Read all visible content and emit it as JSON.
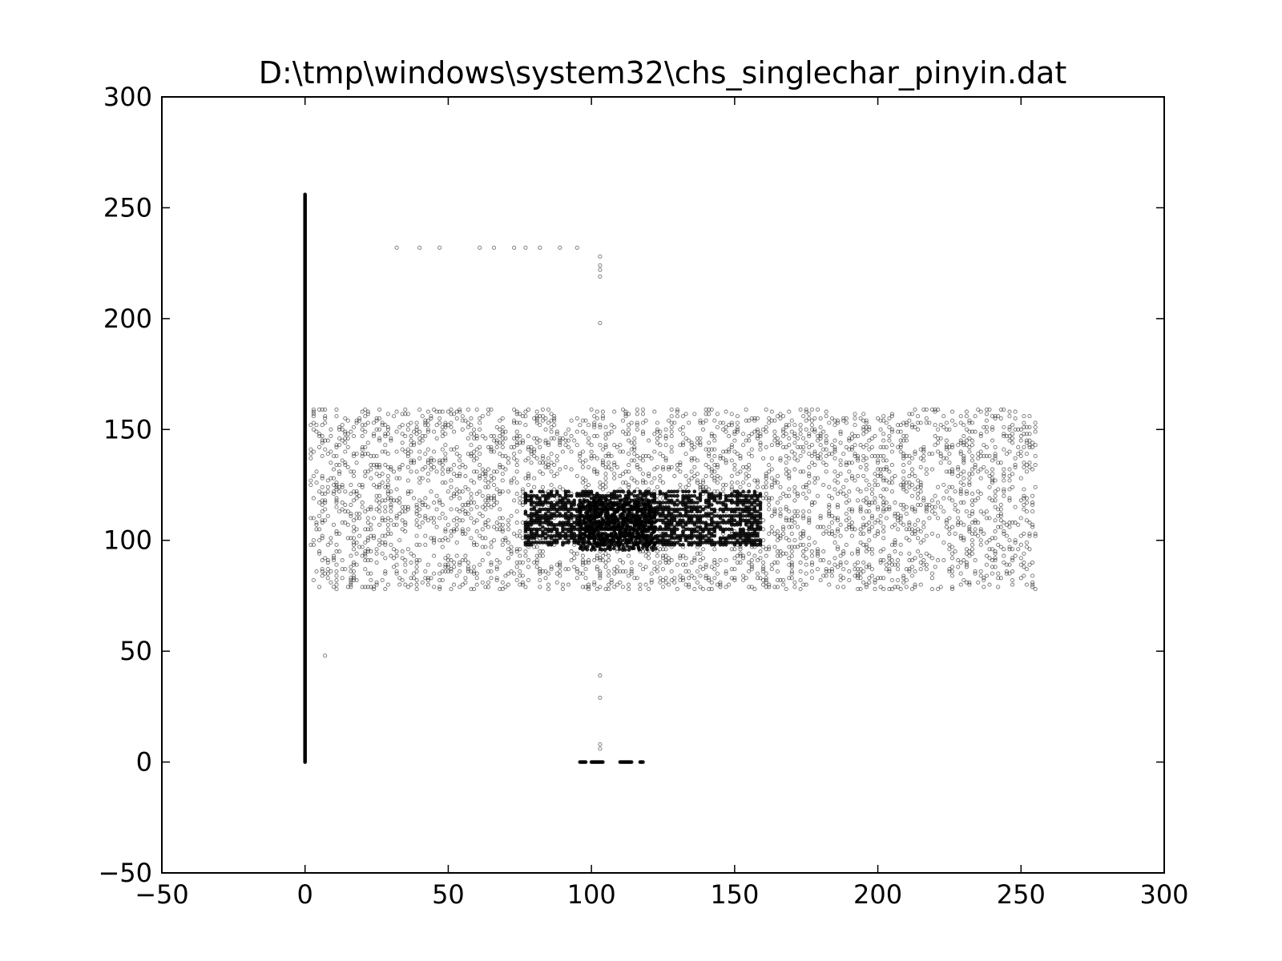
{
  "chart_data": {
    "type": "scatter",
    "title": "D:\\tmp\\windows\\system32\\chs_singlechar_pinyin.dat",
    "xlabel": "",
    "ylabel": "",
    "xlim": [
      -50,
      300
    ],
    "ylim": [
      -50,
      300
    ],
    "x_ticks": [
      -50,
      0,
      50,
      100,
      150,
      200,
      250,
      300
    ],
    "y_ticks": [
      -50,
      0,
      50,
      100,
      150,
      200,
      250,
      300
    ],
    "x_tick_labels": [
      "−50",
      "0",
      "50",
      "100",
      "150",
      "200",
      "250",
      "300"
    ],
    "y_tick_labels": [
      "−50",
      "0",
      "50",
      "100",
      "150",
      "200",
      "250",
      "300"
    ],
    "grid": false,
    "marker_color": "#000000",
    "series": [
      {
        "values": {
          "x_zero_column": {
            "x": 0,
            "y_range": [
              0,
              256
            ]
          },
          "top_row_points": [
            [
              32,
              232
            ],
            [
              40,
              232
            ],
            [
              47,
              232
            ],
            [
              61,
              232
            ],
            [
              66,
              232
            ],
            [
              73,
              232
            ],
            [
              77,
              232
            ],
            [
              82,
              232
            ],
            [
              89,
              232
            ],
            [
              95,
              232
            ]
          ],
          "x103_column_points": [
            [
              103,
              228
            ],
            [
              103,
              224
            ],
            [
              103,
              222
            ],
            [
              103,
              219
            ],
            [
              103,
              198
            ],
            [
              103,
              39
            ],
            [
              103,
              29
            ],
            [
              103,
              8
            ],
            [
              103,
              6
            ]
          ],
          "isolated_points": [
            [
              7,
              48
            ]
          ],
          "sparse_block": {
            "x_range": [
              2,
              255
            ],
            "y_range": [
              78,
              159
            ]
          },
          "dense_block": {
            "x_range": [
              77,
              159
            ],
            "y_range": [
              98,
              122
            ]
          },
          "densest_block": {
            "x_range": [
              96,
              122
            ],
            "y_range": [
              96,
              118
            ]
          },
          "baseline_segments": [
            [
              96,
              98,
              0
            ],
            [
              100,
              104,
              0
            ],
            [
              110,
              114,
              0
            ],
            [
              117,
              118,
              0
            ]
          ]
        }
      }
    ]
  }
}
